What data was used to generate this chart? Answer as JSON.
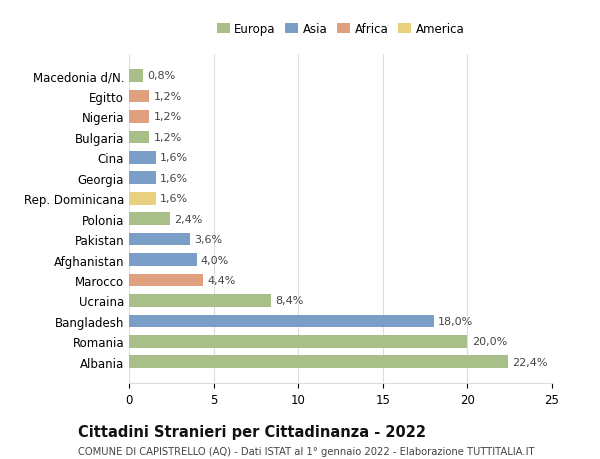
{
  "categories": [
    "Albania",
    "Romania",
    "Bangladesh",
    "Ucraina",
    "Marocco",
    "Afghanistan",
    "Pakistan",
    "Polonia",
    "Rep. Dominicana",
    "Georgia",
    "Cina",
    "Bulgaria",
    "Nigeria",
    "Egitto",
    "Macedonia d/N."
  ],
  "values": [
    22.4,
    20.0,
    18.0,
    8.4,
    4.4,
    4.0,
    3.6,
    2.4,
    1.6,
    1.6,
    1.6,
    1.2,
    1.2,
    1.2,
    0.8
  ],
  "labels": [
    "22,4%",
    "20,0%",
    "18,0%",
    "8,4%",
    "4,4%",
    "4,0%",
    "3,6%",
    "2,4%",
    "1,6%",
    "1,6%",
    "1,6%",
    "1,2%",
    "1,2%",
    "1,2%",
    "0,8%"
  ],
  "continents": [
    "Europa",
    "Europa",
    "Asia",
    "Europa",
    "Africa",
    "Asia",
    "Asia",
    "Europa",
    "America",
    "Asia",
    "Asia",
    "Europa",
    "Africa",
    "Africa",
    "Europa"
  ],
  "continent_colors": {
    "Europa": "#a8bf8a",
    "Asia": "#7b9ec9",
    "Africa": "#e0a080",
    "America": "#e8d080"
  },
  "legend_order": [
    "Europa",
    "Asia",
    "Africa",
    "America"
  ],
  "title": "Cittadini Stranieri per Cittadinanza - 2022",
  "subtitle": "COMUNE DI CAPISTRELLO (AQ) - Dati ISTAT al 1° gennaio 2022 - Elaborazione TUTTITALIA.IT",
  "xlim": [
    0,
    25
  ],
  "xticks": [
    0,
    5,
    10,
    15,
    20,
    25
  ],
  "background_color": "#ffffff",
  "grid_color": "#dddddd",
  "bar_height": 0.62,
  "label_fontsize": 8.0,
  "tick_fontsize": 8.5,
  "title_fontsize": 10.5,
  "subtitle_fontsize": 7.2
}
